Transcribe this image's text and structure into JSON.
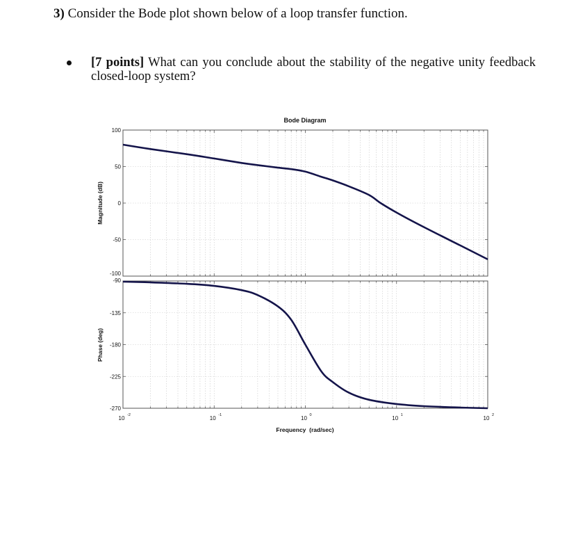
{
  "question": {
    "number": "3)",
    "text": "Consider the Bode plot shown below of a loop transfer function."
  },
  "bullet": {
    "points": "[7 points]",
    "text": "What can you conclude about the stability of the negative unity feedback closed-loop system?"
  },
  "chart_data": {
    "type": "line",
    "title": "Bode Diagram",
    "xlabel": "Frequency  (rad/sec)",
    "xscale": "log",
    "xlim": [
      0.01,
      100
    ],
    "x_tick_labels": [
      "10^-2",
      "10^-1",
      "10^0",
      "10^1",
      "10^2"
    ],
    "grid": true,
    "legend": null,
    "subplots": [
      {
        "name": "magnitude",
        "ylabel": "Magnitude (dB)",
        "ylim": [
          -100,
          100
        ],
        "y_ticks": [
          100,
          50,
          0,
          -50,
          -100
        ],
        "series": [
          {
            "name": "Magnitude",
            "x": [
              0.01,
              0.02,
              0.05,
              0.1,
              0.2,
              0.3,
              0.5,
              0.7,
              1.0,
              1.5,
              2,
              3,
              5,
              6.7,
              10,
              20,
              50,
              100
            ],
            "values": [
              80,
              74,
              67,
              61,
              55,
              52,
              48.5,
              46.5,
              43,
              36,
              31,
              23,
              11,
              0,
              -13,
              -33,
              -58,
              -77
            ]
          }
        ]
      },
      {
        "name": "phase",
        "ylabel": "Phase (deg)",
        "ylim": [
          -270,
          -90
        ],
        "y_ticks": [
          -90,
          -135,
          -180,
          -225,
          -270
        ],
        "series": [
          {
            "name": "Phase",
            "x": [
              0.01,
              0.02,
              0.05,
              0.1,
              0.2,
              0.3,
              0.5,
              0.7,
              1.0,
              1.5,
              2,
              3,
              5,
              10,
              20,
              50,
              100
            ],
            "values": [
              -91,
              -92,
              -94,
              -97,
              -103,
              -110,
              -126,
              -145,
              -180,
              -218,
              -233,
              -248,
              -258,
              -264,
              -267,
              -269,
              -270
            ]
          }
        ]
      }
    ],
    "tick_labels_display": {
      "mag": [
        "100",
        "50",
        "0",
        "-50",
        "-100"
      ],
      "phase": [
        "-90",
        "-135",
        "-180",
        "-225",
        "-270"
      ],
      "x_base": [
        "10",
        "10",
        "10",
        "10",
        "10"
      ],
      "x_exp": [
        "-2",
        "-1",
        "0",
        "1",
        "2"
      ]
    }
  },
  "colors": {
    "curve": "#14144a",
    "axis": "#555555",
    "grid": "#c8c8c8",
    "text": "#111111"
  }
}
